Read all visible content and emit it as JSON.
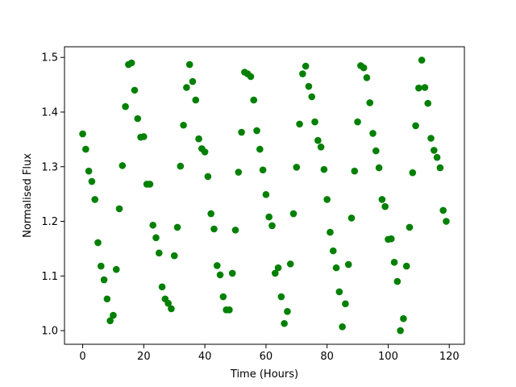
{
  "chart_data": {
    "type": "scatter",
    "x": [
      0,
      1,
      2,
      3,
      4,
      5,
      6,
      7,
      8,
      9,
      10,
      11,
      12,
      13,
      14,
      15,
      16,
      17,
      18,
      19,
      20,
      21,
      22,
      23,
      24,
      25,
      26,
      27,
      28,
      29,
      30,
      31,
      32,
      33,
      34,
      35,
      36,
      37,
      38,
      39,
      40,
      41,
      42,
      43,
      44,
      45,
      46,
      47,
      48,
      49,
      50,
      51,
      52,
      53,
      54,
      55,
      56,
      57,
      58,
      59,
      60,
      61,
      62,
      63,
      64,
      65,
      66,
      67,
      68,
      69,
      70,
      71,
      72,
      73,
      74,
      75,
      76,
      77,
      78,
      79,
      80,
      81,
      82,
      83,
      84,
      85,
      86,
      87,
      88,
      89,
      90,
      91,
      92,
      93,
      94,
      95,
      96,
      97,
      98,
      99,
      100,
      101,
      102,
      103,
      104,
      105,
      106,
      107,
      108,
      109,
      110,
      111,
      112,
      113,
      114,
      115,
      116,
      117,
      118,
      119
    ],
    "values": [
      1.36,
      1.332,
      1.292,
      1.273,
      1.24,
      1.161,
      1.118,
      1.093,
      1.058,
      1.018,
      1.028,
      1.112,
      1.223,
      1.302,
      1.41,
      1.487,
      1.49,
      1.44,
      1.388,
      1.354,
      1.355,
      1.268,
      1.268,
      1.193,
      1.17,
      1.142,
      1.08,
      1.058,
      1.05,
      1.04,
      1.137,
      1.189,
      1.301,
      1.376,
      1.445,
      1.487,
      1.456,
      1.422,
      1.351,
      1.333,
      1.327,
      1.282,
      1.214,
      1.186,
      1.119,
      1.102,
      1.062,
      1.038,
      1.038,
      1.105,
      1.184,
      1.29,
      1.363,
      1.473,
      1.47,
      1.465,
      1.422,
      1.366,
      1.332,
      1.294,
      1.249,
      1.208,
      1.192,
      1.105,
      1.115,
      1.062,
      1.013,
      1.035,
      1.122,
      1.214,
      1.299,
      1.378,
      1.47,
      1.484,
      1.447,
      1.428,
      1.382,
      1.348,
      1.336,
      1.295,
      1.24,
      1.18,
      1.146,
      1.115,
      1.071,
      1.007,
      1.049,
      1.121,
      1.206,
      1.292,
      1.382,
      1.485,
      1.481,
      1.463,
      1.417,
      1.361,
      1.329,
      1.298,
      1.24,
      1.227,
      1.167,
      1.168,
      1.125,
      1.09,
      1.0,
      1.022,
      1.118,
      1.189,
      1.289,
      1.375,
      1.444,
      1.495,
      1.445,
      1.416,
      1.352,
      1.33,
      1.317,
      1.298,
      1.22,
      1.2
    ],
    "color": "#008000",
    "xlabel": "Time (Hours)",
    "ylabel": "Normalised Flux",
    "xlim": [
      -5.95,
      124.95
    ],
    "ylim": [
      0.975,
      1.5195
    ],
    "xticks": [
      0,
      20,
      40,
      60,
      80,
      100,
      120
    ],
    "yticks": [
      {
        "value": 1.0,
        "label": "1.0"
      },
      1.1,
      1.2,
      1.3,
      1.4,
      1.5
    ]
  }
}
